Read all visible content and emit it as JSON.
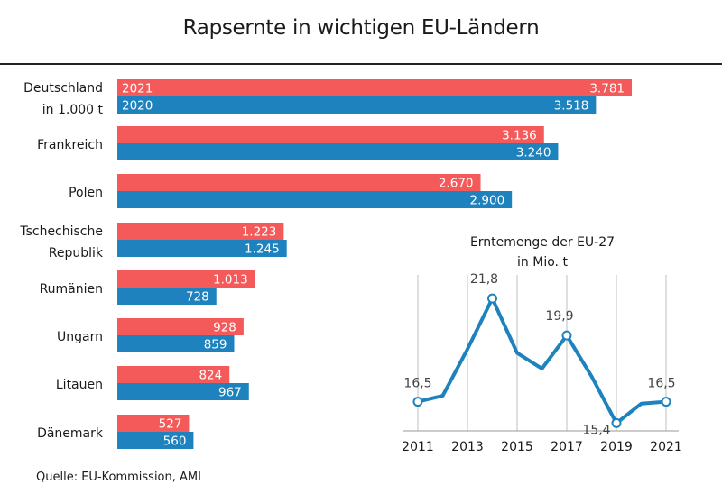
{
  "title": "Rapsernte in wichtigen EU-Ländern",
  "source": "Quelle:  EU-Kommission, AMI",
  "colors": {
    "y2021": "#f45a5a",
    "y2020": "#1d82bd",
    "grid": "#bfbfbf",
    "line": "#1d82bd"
  },
  "chart_data": [
    {
      "type": "bar",
      "unit_label": "in 1.000 t",
      "series": [
        {
          "name": "2021",
          "values": [
            3781,
            3136,
            2670,
            1223,
            1013,
            928,
            824,
            527
          ],
          "labels": [
            "3.781",
            "3.136",
            "2.670",
            "1.223",
            "1.013",
            "928",
            "824",
            "527"
          ]
        },
        {
          "name": "2020",
          "values": [
            3518,
            3240,
            2900,
            1245,
            728,
            859,
            967,
            560
          ],
          "labels": [
            "3.518",
            "3.240",
            "2.900",
            "1.245",
            "728",
            "859",
            "967",
            "560"
          ]
        }
      ],
      "categories": [
        [
          "Deutschland"
        ],
        [
          "Frankreich"
        ],
        [
          "Polen"
        ],
        [
          "Tschechische",
          "Republik"
        ],
        [
          "Rumänien"
        ],
        [
          "Ungarn"
        ],
        [
          "Litauen"
        ],
        [
          "Dänemark"
        ]
      ]
    },
    {
      "type": "line",
      "title": [
        "Erntemenge der EU-27",
        "in Mio. t"
      ],
      "x": [
        2011,
        2012,
        2013,
        2014,
        2015,
        2016,
        2017,
        2018,
        2019,
        2020,
        2021
      ],
      "values": [
        16.5,
        16.8,
        19.2,
        21.8,
        19.0,
        18.2,
        19.9,
        17.8,
        15.4,
        16.4,
        16.5
      ],
      "x_ticks": [
        "2011",
        "2013",
        "2015",
        "2017",
        "2019",
        "2021"
      ],
      "ylim": [
        15,
        22.5
      ],
      "annotations": [
        {
          "x": 2011,
          "label": "16,5"
        },
        {
          "x": 2014,
          "label": "21,8"
        },
        {
          "x": 2017,
          "label": "19,9"
        },
        {
          "x": 2019,
          "label": "15,4"
        },
        {
          "x": 2021,
          "label": "16,5"
        }
      ]
    }
  ]
}
